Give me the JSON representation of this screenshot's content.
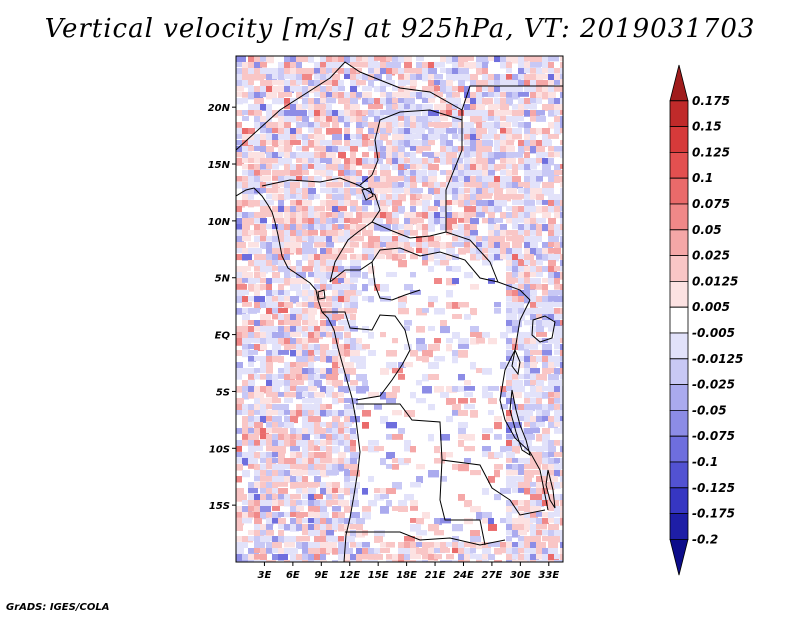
{
  "title": "Vertical velocity [m/s] at 925hPa, VT: 2019031703",
  "credit": "GrADS: IGES/COLA",
  "map": {
    "lon_range": [
      0,
      34.5
    ],
    "lat_range": [
      -20,
      24.5
    ],
    "lat_ticks": [
      {
        "label": "20N",
        "value": 20
      },
      {
        "label": "15N",
        "value": 15
      },
      {
        "label": "10N",
        "value": 10
      },
      {
        "label": "5N",
        "value": 5
      },
      {
        "label": "EQ",
        "value": 0
      },
      {
        "label": "5S",
        "value": -5
      },
      {
        "label": "10S",
        "value": -10
      },
      {
        "label": "15S",
        "value": -15
      }
    ],
    "lon_ticks": [
      {
        "label": "3E",
        "value": 3
      },
      {
        "label": "6E",
        "value": 6
      },
      {
        "label": "9E",
        "value": 9
      },
      {
        "label": "12E",
        "value": 12
      },
      {
        "label": "15E",
        "value": 15
      },
      {
        "label": "18E",
        "value": 18
      },
      {
        "label": "21E",
        "value": 21
      },
      {
        "label": "24E",
        "value": 24
      },
      {
        "label": "27E",
        "value": 27
      },
      {
        "label": "30E",
        "value": 30
      },
      {
        "label": "33E",
        "value": 33
      }
    ]
  },
  "colorbar": {
    "labels": [
      "0.175",
      "0.15",
      "0.125",
      "0.1",
      "0.075",
      "0.05",
      "0.025",
      "0.0125",
      "0.005",
      "-0.005",
      "-0.0125",
      "-0.025",
      "-0.05",
      "-0.075",
      "-0.1",
      "-0.125",
      "-0.175",
      "-0.2"
    ],
    "colors": [
      "#a01c1c",
      "#c02a2a",
      "#d63a3a",
      "#e35050",
      "#ea6a6a",
      "#f08888",
      "#f5a7a7",
      "#f9c6c6",
      "#fce2e2",
      "#ffffff",
      "#e2e2fa",
      "#c8c8f5",
      "#aaaaee",
      "#8c8ce6",
      "#6e6ede",
      "#5252d2",
      "#3636c2",
      "#1e1ea6",
      "#0c0c8a"
    ]
  }
}
